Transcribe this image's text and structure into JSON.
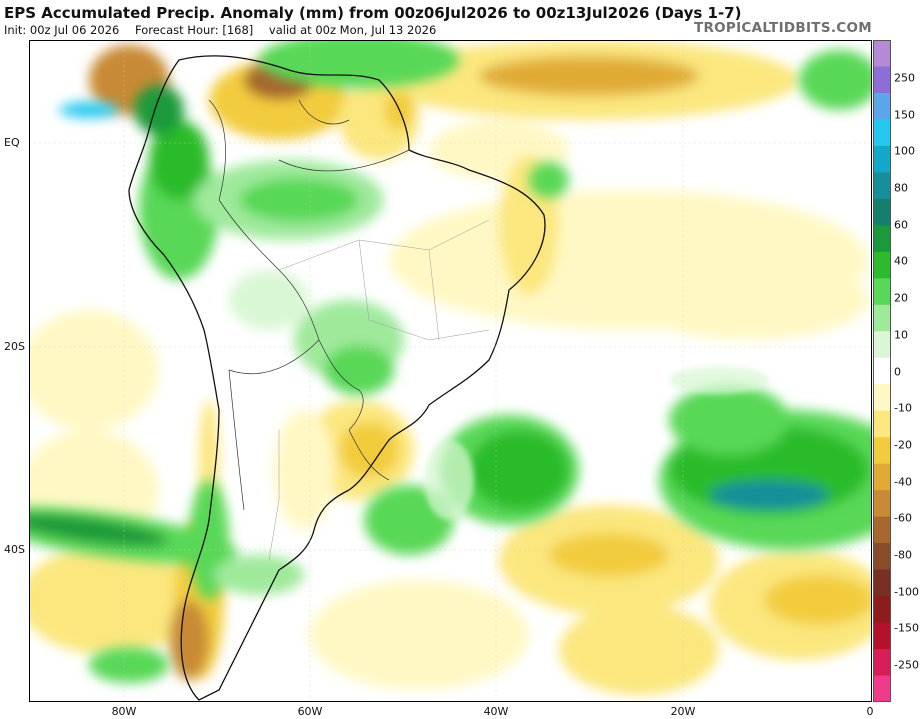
{
  "header": {
    "title": "EPS Accumulated Precip. Anomaly (mm) from 00z06Jul2026 to 00z13Jul2026 (Days 1-7)",
    "init": "Init: 00z Jul 06 2026",
    "forecast_hour": "Forecast Hour: [168]",
    "valid": "valid at 00z Mon, Jul 13 2026",
    "brand": "TROPICALTIDBITS.COM"
  },
  "map": {
    "lat_labels": [
      "EQ",
      "20S",
      "40S"
    ],
    "lon_labels": [
      "80W",
      "60W",
      "40W",
      "20W",
      "0"
    ]
  },
  "colorbar": {
    "labels": [
      "250",
      "150",
      "100",
      "80",
      "60",
      "40",
      "20",
      "10",
      "0",
      "-10",
      "-20",
      "-40",
      "-60",
      "-80",
      "-100",
      "-150",
      "-250"
    ],
    "colors": [
      "#b48ad6",
      "#8d6ed6",
      "#5aa6e8",
      "#24c8ee",
      "#13a8c9",
      "#178f9a",
      "#13806d",
      "#1a9a3a",
      "#2cbb2c",
      "#58d857",
      "#9fe99b",
      "#d9f7d4",
      "#ffffff",
      "#fff8c4",
      "#fbe77e",
      "#f2cc3c",
      "#e0ab34",
      "#c88a34",
      "#a6682e",
      "#8a4b2a",
      "#7a2f24",
      "#8e1c1c",
      "#b3122a",
      "#d81d58",
      "#f03a8a"
    ]
  },
  "legend_meaning": {
    "wet_colors": [
      "#d9f7d4",
      "#9fe99b",
      "#58d857",
      "#2cbb2c",
      "#1a9a3a",
      "#13806d",
      "#13a8c9",
      "#24c8ee"
    ],
    "dry_colors": [
      "#fff8c4",
      "#fbe77e",
      "#f2cc3c",
      "#e0ab34",
      "#c88a34",
      "#a6682e",
      "#8a4b2a"
    ]
  }
}
